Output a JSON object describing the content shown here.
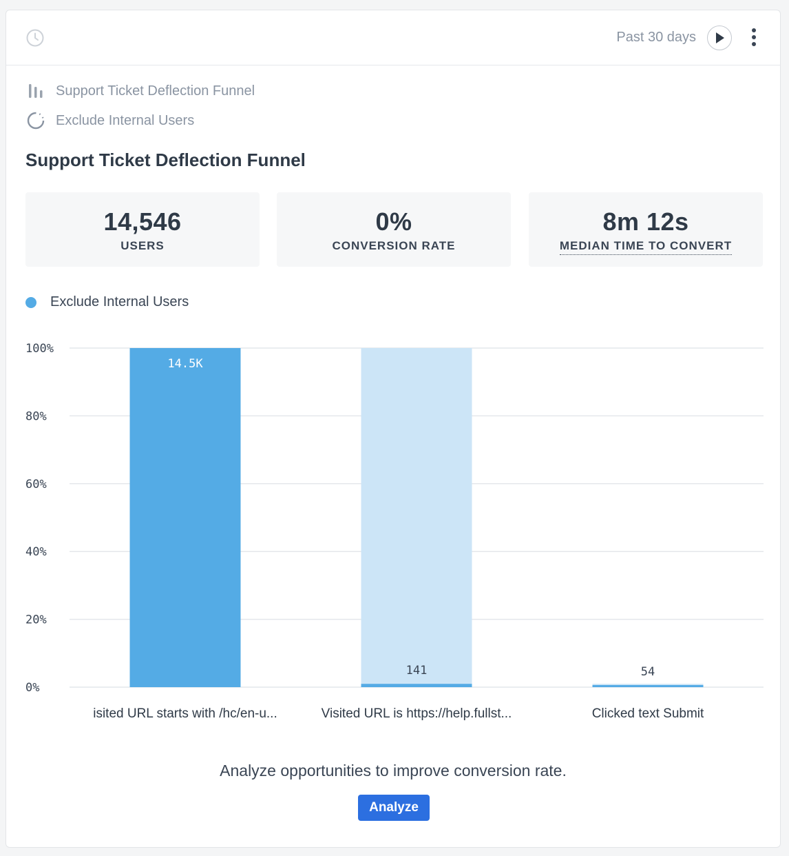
{
  "header": {
    "range_label": "Past 30 days"
  },
  "meta": {
    "funnel_name": "Support Ticket Deflection Funnel",
    "segment_name": "Exclude Internal Users"
  },
  "title": "Support Ticket Deflection Funnel",
  "stats": [
    {
      "value": "14,546",
      "label": "USERS"
    },
    {
      "value": "0%",
      "label": "CONVERSION RATE"
    },
    {
      "value": "8m 12s",
      "label": "MEDIAN TIME TO CONVERT"
    }
  ],
  "legend": {
    "label": "Exclude Internal Users",
    "color": "#54abe5"
  },
  "chart_data": {
    "type": "bar",
    "categories": [
      "isited URL starts with /hc/en-u...",
      "Visited URL is https://help.fullst...",
      "Clicked text Submit"
    ],
    "values": [
      14546,
      141,
      54
    ],
    "value_labels": [
      "14.5K",
      "141",
      "54"
    ],
    "ylim": [
      0,
      100
    ],
    "yticks": [
      0,
      20,
      40,
      60,
      80,
      100
    ],
    "ytick_labels": [
      "0%",
      "20%",
      "40%",
      "60%",
      "80%",
      "100%"
    ],
    "grid": true,
    "colors": {
      "converted": "#54abe5",
      "dropped": "#cce5f7",
      "grid": "#e4e7eb"
    }
  },
  "cta": {
    "text": "Analyze opportunities to improve conversion rate.",
    "button_label": "Analyze"
  }
}
